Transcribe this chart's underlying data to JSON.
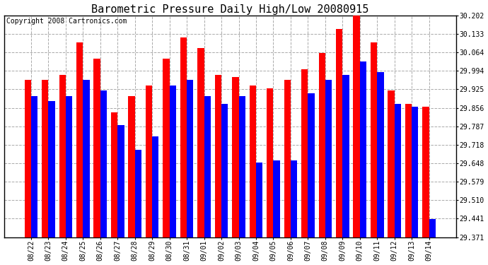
{
  "title": "Barometric Pressure Daily High/Low 20080915",
  "copyright": "Copyright 2008 Cartronics.com",
  "dates": [
    "08/22",
    "08/23",
    "08/24",
    "08/25",
    "08/26",
    "08/27",
    "08/28",
    "08/29",
    "08/30",
    "08/31",
    "09/01",
    "09/02",
    "09/03",
    "09/04",
    "09/05",
    "09/06",
    "09/07",
    "09/08",
    "09/09",
    "09/10",
    "09/11",
    "09/12",
    "09/13",
    "09/14"
  ],
  "highs": [
    29.96,
    29.96,
    29.98,
    30.1,
    30.04,
    29.84,
    29.9,
    29.94,
    30.04,
    30.12,
    30.08,
    29.98,
    29.97,
    29.94,
    29.93,
    29.96,
    30.0,
    30.06,
    30.15,
    30.2,
    30.1,
    29.92,
    29.87,
    29.86
  ],
  "lows": [
    29.9,
    29.88,
    29.9,
    29.96,
    29.92,
    29.79,
    29.7,
    29.75,
    29.94,
    29.96,
    29.9,
    29.87,
    29.9,
    29.65,
    29.66,
    29.66,
    29.91,
    29.96,
    29.98,
    30.03,
    29.99,
    29.87,
    29.86,
    29.44
  ],
  "y_ticks": [
    29.371,
    29.441,
    29.51,
    29.579,
    29.648,
    29.718,
    29.787,
    29.856,
    29.925,
    29.994,
    30.064,
    30.133,
    30.202
  ],
  "y_min": 29.371,
  "y_max": 30.202,
  "high_color": "#FF0000",
  "low_color": "#0000FF",
  "bg_color": "#FFFFFF",
  "grid_color": "#AAAAAA",
  "title_fontsize": 11,
  "copyright_fontsize": 7
}
